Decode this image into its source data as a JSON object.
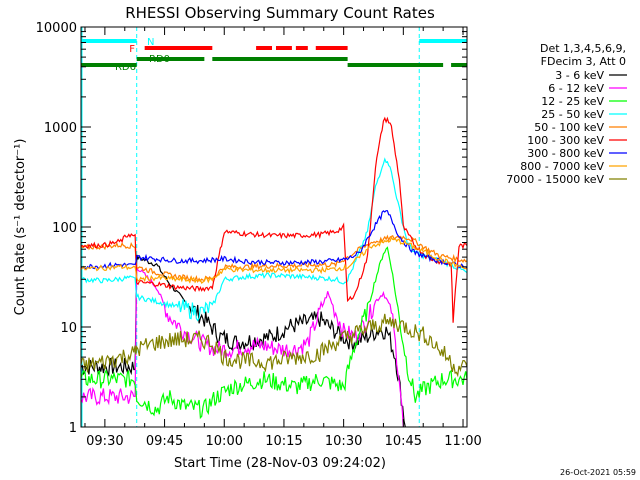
{
  "chart_data": {
    "type": "line",
    "title": "RHESSI Observing Summary Count Rates",
    "xlabel": "Start Time (28-Nov-03 09:24:02)",
    "ylabel": "Count Rate (s⁻¹ detector⁻¹)",
    "ylog": true,
    "ylim": [
      1,
      10000
    ],
    "xlim_min": [
      564,
      661
    ],
    "x_unit": "minutes since 00:00 UT",
    "x_ticks": [
      {
        "min": 570,
        "label": "09:30"
      },
      {
        "min": 585,
        "label": "09:45"
      },
      {
        "min": 600,
        "label": "10:00"
      },
      {
        "min": 615,
        "label": "10:15"
      },
      {
        "min": 630,
        "label": "10:30"
      },
      {
        "min": 645,
        "label": "10:45"
      },
      {
        "min": 660,
        "label": "11:00"
      }
    ],
    "y_ticks": [
      {
        "v": 1,
        "label": "1"
      },
      {
        "v": 10,
        "label": "10"
      },
      {
        "v": 100,
        "label": "100"
      },
      {
        "v": 1000,
        "label": "1000"
      },
      {
        "v": 10000,
        "label": "10000"
      }
    ],
    "legend": {
      "placement": "right",
      "header": [
        "Det 1,3,4,5,6,9,",
        "FDecim 3, Att 0"
      ]
    },
    "flags": [
      {
        "label": "N",
        "color": "#00ffff",
        "segments": [
          [
            564,
            578
          ],
          [
            649,
            661
          ]
        ]
      },
      {
        "label": "F",
        "color": "#ff0000",
        "segments": [
          [
            580,
            597
          ],
          [
            608,
            612
          ],
          [
            613,
            617
          ],
          [
            618,
            621
          ],
          [
            623,
            631
          ]
        ]
      },
      {
        "label": "RD0",
        "color": "#008000",
        "segments": [
          [
            578,
            595
          ],
          [
            597,
            631
          ]
        ]
      },
      {
        "label": "RD6",
        "color": "#008000",
        "segments": [
          [
            564,
            578
          ],
          [
            631,
            655
          ],
          [
            657,
            661
          ]
        ]
      }
    ],
    "series": [
      {
        "name": "3 - 6 keV",
        "color": "#000000",
        "points": [
          [
            564,
            4
          ],
          [
            577.6,
            4
          ],
          [
            578,
            50
          ],
          [
            583,
            42
          ],
          [
            586,
            28
          ],
          [
            590,
            18
          ],
          [
            595,
            12
          ],
          [
            599,
            8
          ],
          [
            603,
            7
          ],
          [
            608,
            7.5
          ],
          [
            612,
            8
          ],
          [
            616,
            10
          ],
          [
            620,
            11
          ],
          [
            624,
            12
          ],
          [
            628,
            9
          ],
          [
            632,
            7
          ],
          [
            636,
            8
          ],
          [
            639,
            9.5
          ],
          [
            641,
            9
          ],
          [
            643,
            5
          ],
          [
            644.5,
            2
          ],
          [
            645.5,
            1
          ]
        ]
      },
      {
        "name": "6 - 12 keV",
        "color": "#ff00ff",
        "points": [
          [
            564,
            2
          ],
          [
            577.6,
            2
          ],
          [
            578,
            40
          ],
          [
            583,
            25
          ],
          [
            586,
            13
          ],
          [
            590,
            9
          ],
          [
            594,
            7
          ],
          [
            598,
            6
          ],
          [
            602,
            6
          ],
          [
            606,
            6.5
          ],
          [
            610,
            6.5
          ],
          [
            614,
            6
          ],
          [
            618,
            6
          ],
          [
            621,
            7
          ],
          [
            624,
            14
          ],
          [
            626,
            22
          ],
          [
            628,
            14
          ],
          [
            630,
            9
          ],
          [
            633,
            8
          ],
          [
            636,
            12
          ],
          [
            638,
            18
          ],
          [
            640,
            22
          ],
          [
            642,
            15
          ],
          [
            644,
            3
          ],
          [
            645,
            1
          ]
        ]
      },
      {
        "name": "12 - 25 keV",
        "color": "#00ff00",
        "points": [
          [
            564,
            3
          ],
          [
            577.6,
            3
          ],
          [
            578,
            2
          ],
          [
            583,
            1.5
          ],
          [
            586,
            2
          ],
          [
            590,
            1.6
          ],
          [
            595,
            1.5
          ],
          [
            598,
            2
          ],
          [
            602,
            2.5
          ],
          [
            610,
            3
          ],
          [
            618,
            2.5
          ],
          [
            624,
            3
          ],
          [
            630,
            2.5
          ],
          [
            633,
            7
          ],
          [
            636,
            15
          ],
          [
            638,
            30
          ],
          [
            640,
            55
          ],
          [
            641,
            62
          ],
          [
            642,
            40
          ],
          [
            644,
            12
          ],
          [
            646,
            4
          ],
          [
            648,
            2
          ],
          [
            651,
            2.5
          ],
          [
            655,
            3
          ],
          [
            661,
            3
          ]
        ]
      },
      {
        "name": "25 - 50 keV",
        "color": "#00ffff",
        "points": [
          [
            564,
            30
          ],
          [
            570,
            29
          ],
          [
            576,
            31
          ],
          [
            577.6,
            30
          ],
          [
            578,
            20
          ],
          [
            583,
            18
          ],
          [
            588,
            16
          ],
          [
            594,
            14
          ],
          [
            597,
            16
          ],
          [
            600,
            30
          ],
          [
            606,
            32
          ],
          [
            612,
            33
          ],
          [
            618,
            32
          ],
          [
            624,
            31
          ],
          [
            628,
            30
          ],
          [
            630,
            28
          ],
          [
            631,
            30
          ],
          [
            633,
            45
          ],
          [
            636,
            90
          ],
          [
            638,
            250
          ],
          [
            640,
            450
          ],
          [
            641,
            470
          ],
          [
            642,
            350
          ],
          [
            644,
            150
          ],
          [
            646,
            70
          ],
          [
            648,
            55
          ],
          [
            651,
            50
          ],
          [
            655,
            45
          ],
          [
            658,
            40
          ],
          [
            661,
            35
          ]
        ]
      },
      {
        "name": "50 - 100 keV",
        "color": "#ff7f00",
        "points": [
          [
            564,
            62
          ],
          [
            570,
            64
          ],
          [
            574,
            66
          ],
          [
            577.6,
            64
          ],
          [
            578,
            40
          ],
          [
            583,
            35
          ],
          [
            588,
            32
          ],
          [
            594,
            30
          ],
          [
            597,
            31
          ],
          [
            600,
            40
          ],
          [
            606,
            40
          ],
          [
            612,
            41
          ],
          [
            618,
            41
          ],
          [
            624,
            42
          ],
          [
            628,
            42
          ],
          [
            631,
            50
          ],
          [
            634,
            60
          ],
          [
            637,
            70
          ],
          [
            640,
            75
          ],
          [
            642,
            78
          ],
          [
            644,
            80
          ],
          [
            646,
            78
          ],
          [
            648,
            72
          ],
          [
            651,
            60
          ],
          [
            654,
            52
          ],
          [
            658,
            48
          ],
          [
            661,
            46
          ]
        ]
      },
      {
        "name": "100 - 300 keV",
        "color": "#ff0000",
        "points": [
          [
            564,
            65
          ],
          [
            570,
            66
          ],
          [
            574,
            72
          ],
          [
            576,
            85
          ],
          [
            577.6,
            80
          ],
          [
            578,
            28
          ],
          [
            583,
            27
          ],
          [
            588,
            25
          ],
          [
            594,
            24
          ],
          [
            597,
            25
          ],
          [
            600,
            90
          ],
          [
            606,
            85
          ],
          [
            612,
            82
          ],
          [
            618,
            82
          ],
          [
            624,
            84
          ],
          [
            628,
            90
          ],
          [
            630,
            100
          ],
          [
            631,
            18
          ],
          [
            633,
            22
          ],
          [
            636,
            50
          ],
          [
            638,
            400
          ],
          [
            640,
            1150
          ],
          [
            641,
            1200
          ],
          [
            642,
            1000
          ],
          [
            644,
            300
          ],
          [
            645,
            100
          ],
          [
            648,
            65
          ],
          [
            651,
            50
          ],
          [
            654,
            45
          ],
          [
            657,
            43
          ],
          [
            657.5,
            12
          ],
          [
            659,
            65
          ],
          [
            661,
            65
          ]
        ]
      },
      {
        "name": "300 - 800 keV",
        "color": "#0000ff",
        "points": [
          [
            564,
            40
          ],
          [
            570,
            41
          ],
          [
            574,
            42
          ],
          [
            577.6,
            41
          ],
          [
            578,
            50
          ],
          [
            583,
            48
          ],
          [
            588,
            46
          ],
          [
            594,
            46
          ],
          [
            597,
            47
          ],
          [
            600,
            48
          ],
          [
            606,
            45
          ],
          [
            612,
            44
          ],
          [
            618,
            44
          ],
          [
            624,
            45
          ],
          [
            628,
            46
          ],
          [
            631,
            48
          ],
          [
            634,
            55
          ],
          [
            637,
            90
          ],
          [
            640,
            140
          ],
          [
            641,
            140
          ],
          [
            642,
            120
          ],
          [
            644,
            80
          ],
          [
            646,
            65
          ],
          [
            648,
            55
          ],
          [
            651,
            50
          ],
          [
            654,
            46
          ],
          [
            658,
            42
          ],
          [
            661,
            40
          ]
        ]
      },
      {
        "name": "800 - 7000 keV",
        "color": "#ffa500",
        "points": [
          [
            564,
            38
          ],
          [
            570,
            39
          ],
          [
            574,
            40
          ],
          [
            577.6,
            39
          ],
          [
            578,
            30
          ],
          [
            583,
            31
          ],
          [
            588,
            30
          ],
          [
            594,
            29
          ],
          [
            597,
            30
          ],
          [
            600,
            38
          ],
          [
            606,
            37
          ],
          [
            612,
            37
          ],
          [
            618,
            37
          ],
          [
            624,
            37
          ],
          [
            628,
            38
          ],
          [
            631,
            40
          ],
          [
            634,
            50
          ],
          [
            637,
            65
          ],
          [
            640,
            70
          ],
          [
            642,
            75
          ],
          [
            644,
            72
          ],
          [
            646,
            68
          ],
          [
            648,
            62
          ],
          [
            651,
            55
          ],
          [
            654,
            48
          ],
          [
            658,
            42
          ],
          [
            661,
            38
          ]
        ]
      },
      {
        "name": "7000 - 15000 keV",
        "color": "#808000",
        "points": [
          [
            564,
            4
          ],
          [
            570,
            4.5
          ],
          [
            574,
            5
          ],
          [
            577.6,
            5.5
          ],
          [
            578,
            6
          ],
          [
            583,
            7
          ],
          [
            588,
            7.5
          ],
          [
            594,
            7.5
          ],
          [
            597,
            7
          ],
          [
            600,
            5
          ],
          [
            606,
            4.5
          ],
          [
            612,
            4.5
          ],
          [
            618,
            5
          ],
          [
            624,
            5.5
          ],
          [
            628,
            7
          ],
          [
            631,
            8
          ],
          [
            634,
            9
          ],
          [
            637,
            10
          ],
          [
            640,
            11
          ],
          [
            643,
            11
          ],
          [
            646,
            10
          ],
          [
            648,
            9
          ],
          [
            651,
            8
          ],
          [
            654,
            6
          ],
          [
            656,
            5
          ],
          [
            658,
            4
          ],
          [
            661,
            4
          ]
        ]
      }
    ]
  },
  "timestamp": "26-Oct-2021 05:59"
}
